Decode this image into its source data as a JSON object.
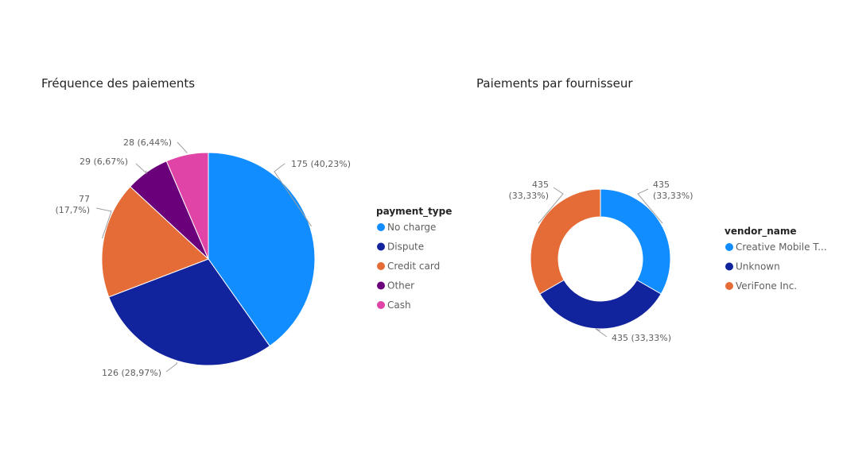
{
  "chart_data": [
    {
      "type": "pie",
      "title": "Fréquence des paiements",
      "legend_title": "payment_type",
      "legend_position": "right",
      "slices": [
        {
          "name": "No charge",
          "value": 175,
          "label": "175 (40,23%)",
          "color": "#118DFF"
        },
        {
          "name": "Dispute",
          "value": 126,
          "label": "126 (28,97%)",
          "color": "#12239E"
        },
        {
          "name": "Credit card",
          "value": 77,
          "label": "77 (17,7%)",
          "color": "#E66C37"
        },
        {
          "name": "Other",
          "value": 29,
          "label": "29 (6,67%)",
          "color": "#6B007B"
        },
        {
          "name": "Cash",
          "value": 28,
          "label": "28 (6,44%)",
          "color": "#E044A7"
        }
      ]
    },
    {
      "type": "donut",
      "title": "Paiements par fournisseur",
      "legend_title": "vendor_name",
      "legend_position": "right",
      "slices": [
        {
          "name": "Creative Mobile T...",
          "value": 435,
          "label": "435 (33,33%)",
          "color": "#118DFF"
        },
        {
          "name": "Unknown",
          "value": 435,
          "label": "435 (33,33%)",
          "color": "#12239E"
        },
        {
          "name": "VeriFone Inc.",
          "value": 435,
          "label": "435 (33,33%)",
          "color": "#E66C37"
        }
      ]
    }
  ]
}
